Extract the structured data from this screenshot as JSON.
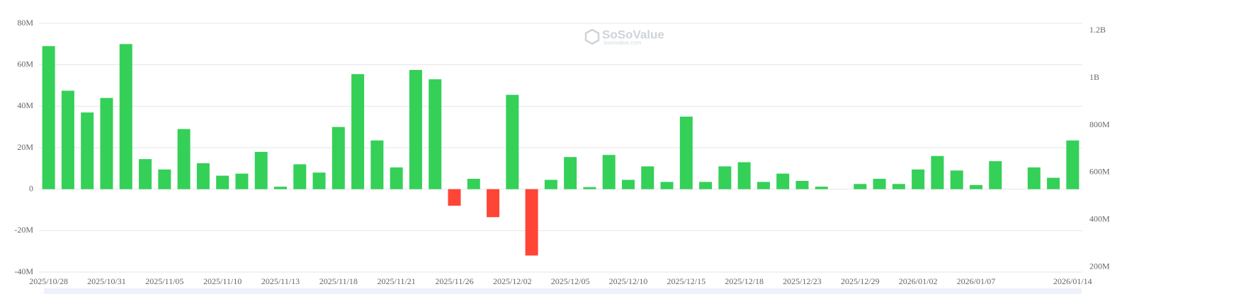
{
  "chart_data": {
    "type": "bar",
    "watermark": "SoSoValue",
    "watermark_sub": "sosovalue.com",
    "categories": [
      "2025/10/28",
      null,
      null,
      "2025/10/31",
      null,
      null,
      "2025/11/05",
      null,
      null,
      "2025/11/10",
      null,
      null,
      "2025/11/13",
      null,
      null,
      "2025/11/18",
      null,
      null,
      "2025/11/21",
      null,
      null,
      "2025/11/26",
      null,
      null,
      "2025/12/02",
      null,
      null,
      "2025/12/05",
      null,
      null,
      "2025/12/10",
      null,
      null,
      "2025/12/15",
      null,
      null,
      "2025/12/18",
      null,
      null,
      "2025/12/23",
      null,
      null,
      "2025/12/29",
      null,
      null,
      "2026/01/02",
      null,
      null,
      "2026/01/07",
      null,
      null,
      null,
      null,
      "2026/01/14"
    ],
    "values": [
      69000000,
      47500000,
      37000000,
      44000000,
      70000000,
      14500000,
      9500000,
      29000000,
      12500000,
      6500000,
      7500000,
      18000000,
      1200000,
      12000000,
      8000000,
      30000000,
      55500000,
      23500000,
      10500000,
      57500000,
      53000000,
      -8000000,
      5000000,
      -13500000,
      45500000,
      -32000000,
      4500000,
      15500000,
      1000000,
      16500000,
      4500000,
      11000000,
      3500000,
      35000000,
      3500000,
      11000000,
      13000000,
      3500000,
      7500000,
      4000000,
      1200000,
      0,
      2500000,
      5000000,
      2500000,
      9500000,
      16000000,
      9000000,
      2000000,
      13500000,
      0,
      10500000,
      5500000,
      23500000
    ],
    "color": "#34d058",
    "negative_color": "#ff4536",
    "ylim": [
      -40000000,
      80000000
    ],
    "yticks": [
      {
        "value": -40000000,
        "label": "-40M"
      },
      {
        "value": -20000000,
        "label": "-20M"
      },
      {
        "value": 0,
        "label": "0"
      },
      {
        "value": 20000000,
        "label": "20M"
      },
      {
        "value": 40000000,
        "label": "40M"
      },
      {
        "value": 60000000,
        "label": "60M"
      },
      {
        "value": 80000000,
        "label": "80M"
      }
    ],
    "y2lim": [
      179000000,
      1230000000
    ],
    "y2ticks": [
      {
        "value": 200000000,
        "label": "200M"
      },
      {
        "value": 400000000,
        "label": "400M"
      },
      {
        "value": 600000000,
        "label": "600M"
      },
      {
        "value": 800000000,
        "label": "800M"
      },
      {
        "value": 1000000000,
        "label": "1B"
      },
      {
        "value": 1200000000,
        "label": "1.2B"
      }
    ],
    "grid": true
  }
}
